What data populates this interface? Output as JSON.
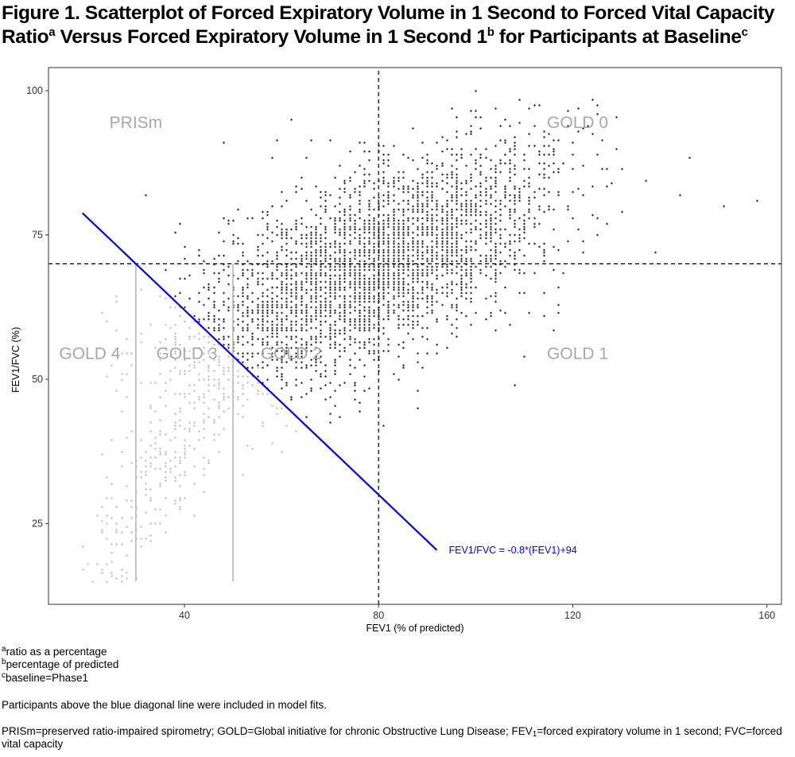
{
  "figure": {
    "title_line1": "Figure 1. Scatterplot of Forced Expiratory Volume in 1 Second to Forced Vital Capacity",
    "title_line2_a": "Ratio",
    "title_sup_a": "a",
    "title_line2_b": " Versus Forced Expiratory Volume in 1 Second 1",
    "title_sup_b": "b",
    "title_line2_c": " for Participants at Baseline",
    "title_sup_c": "c"
  },
  "footnotes": {
    "a_mark": "a",
    "a_text": "ratio as a percentage",
    "b_mark": "b",
    "b_text": "percentage of predicted",
    "c_mark": "c",
    "c_text": "baseline=Phase1",
    "note": "Participants above the blue diagonal line were included in model fits.",
    "abbrev_1": "PRISm=preserved ratio-impaired spirometry; GOLD=Global initiative for chronic Obstructive Lung Disease; FEV",
    "abbrev_sub": "1",
    "abbrev_2": "=forced expiratory volume in 1 second; FVC=forced vital capacity"
  },
  "chart_data": {
    "type": "scatter",
    "xlabel": "FEV1 (% of predicted)",
    "ylabel": "FEV1/FVC (%)",
    "xlim": [
      12,
      163
    ],
    "ylim": [
      11,
      104
    ],
    "x_ticks": [
      40,
      80,
      120,
      160
    ],
    "y_ticks": [
      25,
      50,
      75,
      100
    ],
    "grid": false,
    "reference_lines": [
      {
        "orientation": "vertical",
        "x": 80,
        "style": "dashed",
        "color": "#000000"
      },
      {
        "orientation": "horizontal",
        "y": 70,
        "style": "dashed",
        "color": "#000000"
      },
      {
        "orientation": "vertical",
        "x": 30,
        "y_range": [
          15,
          70
        ],
        "style": "solid",
        "color": "#b3b3b3"
      },
      {
        "orientation": "vertical",
        "x": 50,
        "y_range": [
          15,
          70
        ],
        "style": "solid",
        "color": "#b3b3b3"
      }
    ],
    "fit_line": {
      "equation": "FEV1/FVC = -0.8*(FEV1)+94",
      "slope": -0.8,
      "intercept": 94,
      "x_range": [
        19,
        92
      ],
      "color": "#0000ff"
    },
    "region_labels": [
      {
        "text": "PRISm",
        "x": 30,
        "y": 94.5
      },
      {
        "text": "GOLD 0",
        "x": 121,
        "y": 94.5
      },
      {
        "text": "GOLD 4",
        "x": 20.5,
        "y": 54.5
      },
      {
        "text": "GOLD 3",
        "x": 40.5,
        "y": 54.5
      },
      {
        "text": "GOLD 2",
        "x": 62,
        "y": 54.5
      },
      {
        "text": "GOLD 1",
        "x": 121,
        "y": 54.5
      }
    ],
    "series": [
      {
        "role": "above fit line (included)",
        "color": "#000000",
        "point_count_estimate": 2400,
        "dense_region": {
          "x_center": 82,
          "y_center": 70,
          "x_spread": 16,
          "y_spread": 8
        },
        "sample_points": [
          [
            100,
            100
          ],
          [
            95,
            97
          ],
          [
            62,
            95
          ],
          [
            48,
            91
          ],
          [
            142,
            82
          ],
          [
            158,
            81
          ],
          [
            151,
            80
          ],
          [
            137,
            72
          ],
          [
            110,
            54
          ],
          [
            108,
            49
          ],
          [
            70,
            44
          ],
          [
            90,
            88
          ],
          [
            125,
            89
          ],
          [
            128,
            84
          ],
          [
            65,
            60
          ],
          [
            60,
            55
          ],
          [
            75,
            48
          ],
          [
            85,
            52
          ],
          [
            105,
            62
          ],
          [
            120,
            78
          ]
        ]
      },
      {
        "role": "below fit line (excluded)",
        "color": "#b3b3b3",
        "point_count_estimate": 900,
        "dense_region": {
          "x_center": 42,
          "y_center": 46,
          "x_spread": 12,
          "y_spread": 9
        },
        "sample_points": [
          [
            19,
            21
          ],
          [
            19,
            17
          ],
          [
            21,
            15
          ],
          [
            20,
            18
          ],
          [
            25,
            26
          ],
          [
            30,
            35
          ],
          [
            35,
            47
          ],
          [
            40,
            55
          ],
          [
            45,
            58
          ],
          [
            50,
            55
          ],
          [
            55,
            48
          ],
          [
            60,
            45
          ],
          [
            27,
            17
          ],
          [
            33,
            22
          ],
          [
            38,
            33
          ],
          [
            44,
            40
          ],
          [
            49,
            47
          ],
          [
            55,
            52
          ],
          [
            31,
            58
          ],
          [
            42,
            61
          ]
        ]
      }
    ]
  }
}
